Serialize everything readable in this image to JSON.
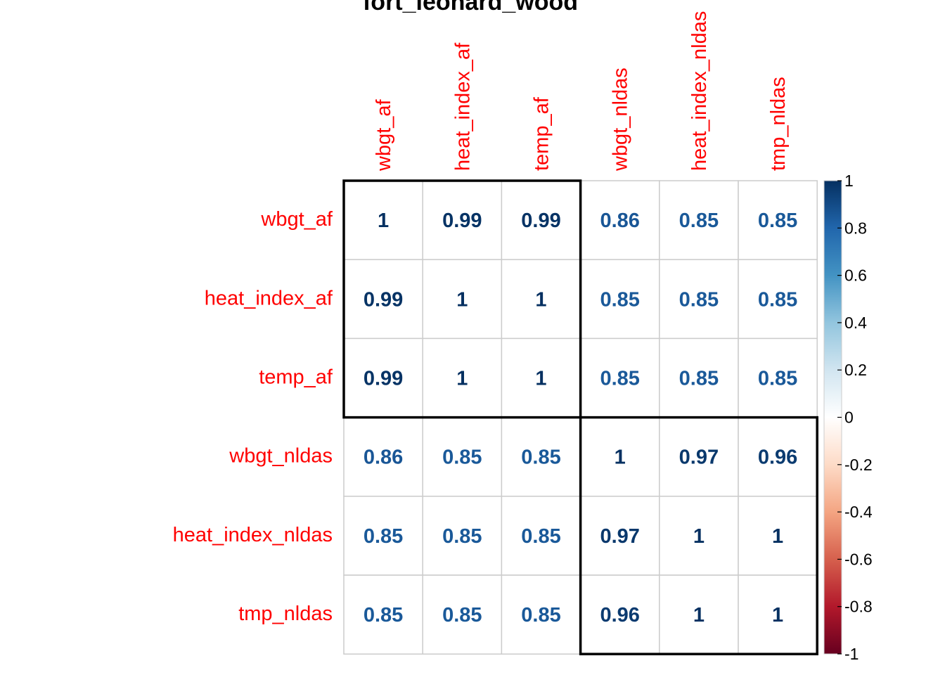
{
  "chart_data": {
    "type": "heatmap",
    "title": "fort_leonard_wood",
    "variables": [
      "wbgt_af",
      "heat_index_af",
      "temp_af",
      "wbgt_nldas",
      "heat_index_nldas",
      "tmp_nldas"
    ],
    "matrix": [
      [
        1,
        0.99,
        0.99,
        0.86,
        0.85,
        0.85
      ],
      [
        0.99,
        1,
        1,
        0.85,
        0.85,
        0.85
      ],
      [
        0.99,
        1,
        1,
        0.85,
        0.85,
        0.85
      ],
      [
        0.86,
        0.85,
        0.85,
        1,
        0.97,
        0.96
      ],
      [
        0.85,
        0.85,
        0.85,
        0.97,
        1,
        1
      ],
      [
        0.85,
        0.85,
        0.85,
        0.96,
        1,
        1
      ]
    ],
    "clusters": [
      [
        0,
        2
      ],
      [
        3,
        5
      ]
    ],
    "colorbar": {
      "range": [
        -1,
        1
      ],
      "ticks": [
        "1",
        "0.8",
        "0.6",
        "0.4",
        "0.2",
        "0",
        "-0.2",
        "-0.4",
        "-0.6",
        "-0.8",
        "-1"
      ],
      "palette": [
        "#67001f",
        "#b2182b",
        "#d6604d",
        "#f4a582",
        "#fddbc7",
        "#ffffff",
        "#d1e5f0",
        "#92c5de",
        "#4393c3",
        "#2166ac",
        "#053061"
      ]
    },
    "label_color": "#ff0000",
    "grid": true
  }
}
